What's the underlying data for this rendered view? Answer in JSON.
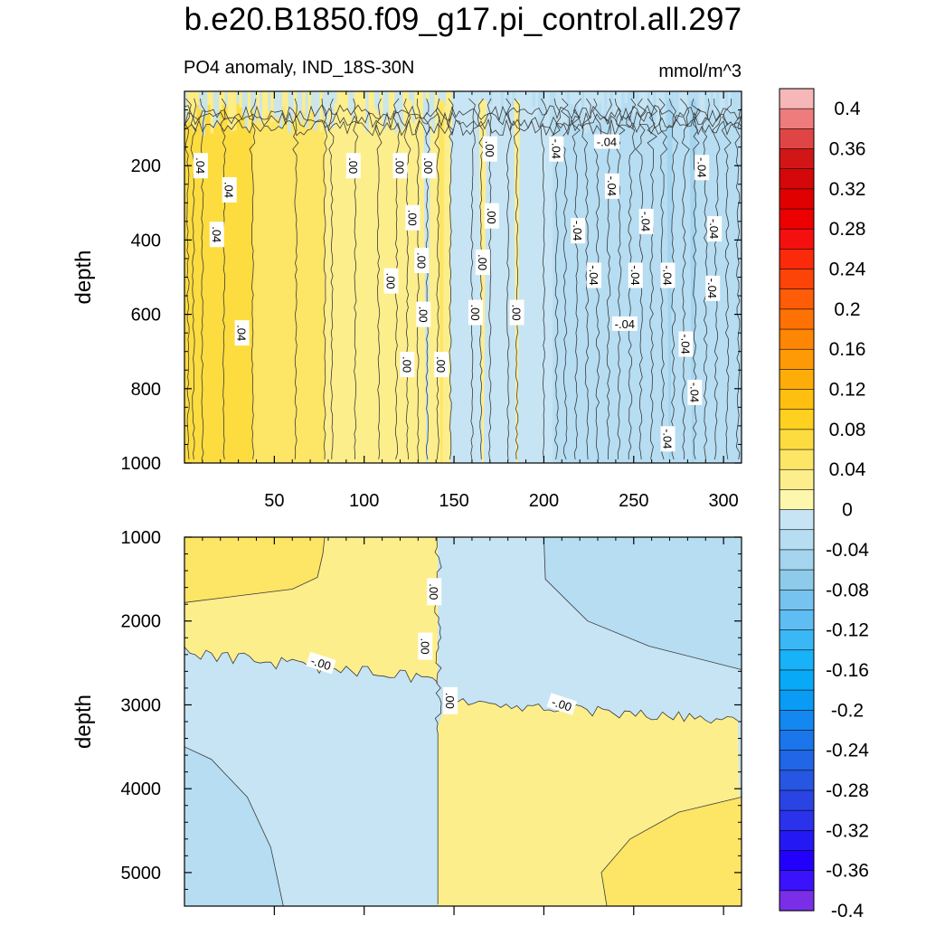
{
  "figure": {
    "title": "b.e20.B1850.f09_g17.pi_control.all.297",
    "subtitle_left": "PO4 anomaly, IND_18S-30N",
    "units": "mmol/m^3"
  },
  "chart_data": [
    {
      "type": "heatmap",
      "panel": "upper",
      "variable": "PO4 anomaly",
      "ylabel": "depth",
      "xlabel": "",
      "xlim": [
        0,
        310
      ],
      "ylim": [
        0,
        1000
      ],
      "y_inverted": true,
      "xticks": [
        50,
        100,
        150,
        200,
        250,
        300
      ],
      "yticks": [
        200,
        400,
        600,
        800,
        1000
      ],
      "x_tick_labels_shown": true,
      "bands": [
        {
          "x0": 0,
          "x1": 38,
          "level": 0.06
        },
        {
          "x0": 38,
          "x1": 78,
          "level": 0.04
        },
        {
          "x0": 78,
          "x1": 148,
          "level": 0.02
        },
        {
          "x0": 148,
          "x1": 205,
          "level": -0.02
        },
        {
          "x0": 205,
          "x1": 310,
          "level": -0.04
        }
      ],
      "spikes": [
        {
          "x": 125,
          "level": 0.02
        },
        {
          "x": 135,
          "level": -0.02
        },
        {
          "x": 143,
          "level": 0.04
        },
        {
          "x": 166,
          "level": 0.02
        },
        {
          "x": 185,
          "level": 0.02
        },
        {
          "x": 270,
          "level": -0.06
        },
        {
          "x": 283,
          "level": -0.06
        }
      ],
      "contour_labels": [
        {
          "text": ".04",
          "x": 9,
          "y": 200
        },
        {
          "text": ".04",
          "x": 25,
          "y": 265
        },
        {
          "text": ".04",
          "x": 18,
          "y": 385
        },
        {
          "text": ".04",
          "x": 32,
          "y": 650
        },
        {
          "text": ".00",
          "x": 94,
          "y": 200
        },
        {
          "text": ".00",
          "x": 120,
          "y": 200
        },
        {
          "text": ".00",
          "x": 136,
          "y": 200
        },
        {
          "text": ".00",
          "x": 127,
          "y": 340
        },
        {
          "text": ".00",
          "x": 115,
          "y": 510
        },
        {
          "text": ".00",
          "x": 132,
          "y": 455
        },
        {
          "text": ".00",
          "x": 133,
          "y": 600
        },
        {
          "text": ".00",
          "x": 124,
          "y": 735
        },
        {
          "text": ".00",
          "x": 143,
          "y": 735
        },
        {
          "text": ".00",
          "x": 170,
          "y": 155
        },
        {
          "text": ".00",
          "x": 171,
          "y": 335
        },
        {
          "text": ".00",
          "x": 166,
          "y": 460
        },
        {
          "text": ".00",
          "x": 162,
          "y": 595
        },
        {
          "text": ".00",
          "x": 185,
          "y": 595
        },
        {
          "text": "-.04",
          "x": 207,
          "y": 155
        },
        {
          "text": "-.04",
          "x": 235,
          "y": 135
        },
        {
          "text": "-.04",
          "x": 238,
          "y": 255
        },
        {
          "text": "-.04",
          "x": 219,
          "y": 375
        },
        {
          "text": "-.04",
          "x": 228,
          "y": 495
        },
        {
          "text": "-.04",
          "x": 257,
          "y": 350
        },
        {
          "text": "-.04",
          "x": 251,
          "y": 495
        },
        {
          "text": "-.04",
          "x": 269,
          "y": 495
        },
        {
          "text": "-.04",
          "x": 245,
          "y": 625
        },
        {
          "text": "-.04",
          "x": 288,
          "y": 205
        },
        {
          "text": "-.04",
          "x": 295,
          "y": 370
        },
        {
          "text": "-.04",
          "x": 294,
          "y": 530
        },
        {
          "text": "-.04",
          "x": 279,
          "y": 680
        },
        {
          "text": "-.04",
          "x": 284,
          "y": 810
        },
        {
          "text": "-.04",
          "x": 269,
          "y": 935
        }
      ]
    },
    {
      "type": "heatmap",
      "panel": "lower",
      "variable": "PO4 anomaly",
      "ylabel": "depth",
      "xlabel": "",
      "xlim": [
        0,
        310
      ],
      "ylim": [
        1000,
        5400
      ],
      "y_inverted": true,
      "xticks": [
        50,
        100,
        150,
        200,
        250,
        300
      ],
      "yticks": [
        1000,
        2000,
        3000,
        4000,
        5000
      ],
      "x_tick_labels_shown": false,
      "regions": [
        {
          "name": "upper-left",
          "x_range": [
            0,
            141
          ],
          "depth_range": [
            1000,
            2300
          ],
          "level": 0.02
        },
        {
          "name": "upper-left-core",
          "x_range": [
            0,
            77
          ],
          "depth_range": [
            1000,
            1750
          ],
          "level": 0.04
        },
        {
          "name": "upper-right",
          "x_range": [
            141,
            310
          ],
          "depth_range": [
            1000,
            3000
          ],
          "level": -0.02
        },
        {
          "name": "upper-right-core",
          "x_range": [
            200,
            310
          ],
          "depth_range": [
            1000,
            2500
          ],
          "level": -0.04
        },
        {
          "name": "lower-left",
          "x_range": [
            0,
            141
          ],
          "depth_range": [
            2300,
            5400
          ],
          "level": -0.02
        },
        {
          "name": "lower-left-core",
          "x_range": [
            0,
            55
          ],
          "depth_range": [
            3500,
            5400
          ],
          "level": -0.04
        },
        {
          "name": "lower-right",
          "x_range": [
            141,
            310
          ],
          "depth_range": [
            3000,
            5400
          ],
          "level": 0.02
        },
        {
          "name": "lower-right-core",
          "x_range": [
            232,
            310
          ],
          "depth_range": [
            4100,
            5400
          ],
          "level": 0.04
        }
      ],
      "contour_labels": [
        {
          "text": ".00",
          "x": 139,
          "y": 1650
        },
        {
          "text": ".00",
          "x": 134,
          "y": 2300
        },
        {
          "text": "-.00",
          "x": 76,
          "y": 2500
        },
        {
          "text": ".00",
          "x": 148,
          "y": 2950
        },
        {
          "text": "-.00",
          "x": 210,
          "y": 2990
        }
      ]
    }
  ],
  "colorbar": {
    "levels": [
      -0.4,
      -0.38,
      -0.36,
      -0.34,
      -0.32,
      -0.3,
      -0.28,
      -0.26,
      -0.24,
      -0.22,
      -0.2,
      -0.18,
      -0.16,
      -0.14,
      -0.12,
      -0.1,
      -0.08,
      -0.06,
      -0.04,
      -0.02,
      0,
      0.02,
      0.04,
      0.06,
      0.08,
      0.1,
      0.12,
      0.14,
      0.16,
      0.18,
      0.2,
      0.22,
      0.24,
      0.26,
      0.28,
      0.3,
      0.32,
      0.34,
      0.36,
      0.38,
      0.4
    ],
    "tick_labels": [
      "0.4",
      "0.36",
      "0.32",
      "0.28",
      "0.24",
      "0.2",
      "0.16",
      "0.12",
      "0.08",
      "0.04",
      "0",
      "-0.04",
      "-0.08",
      "-0.12",
      "-0.16",
      "-0.2",
      "-0.24",
      "-0.28",
      "-0.32",
      "-0.36",
      "-0.4"
    ],
    "colors_top_to_bottom": [
      "#f5b7b7",
      "#ee7c7c",
      "#e04545",
      "#d21616",
      "#d40808",
      "#e00000",
      "#ec0000",
      "#f51010",
      "#fb2a0a",
      "#fd4408",
      "#fe5c06",
      "#fe7205",
      "#fe8605",
      "#fe9a06",
      "#fead08",
      "#febf10",
      "#fed020",
      "#fddc40",
      "#fde565",
      "#fdee8c",
      "#fdf7ad",
      "#c6e4f4",
      "#b6ddf2",
      "#a4d4ee",
      "#8ecbea",
      "#75c3ee",
      "#5ebdf3",
      "#3ab7f5",
      "#17b2f7",
      "#08aaf7",
      "#0a9cf4",
      "#1288f0",
      "#1a76ea",
      "#2066e6",
      "#2656e2",
      "#2a44e4",
      "#2a32ec",
      "#2418f4",
      "#2200fb",
      "#3a12fb",
      "#7a2ee8"
    ]
  }
}
